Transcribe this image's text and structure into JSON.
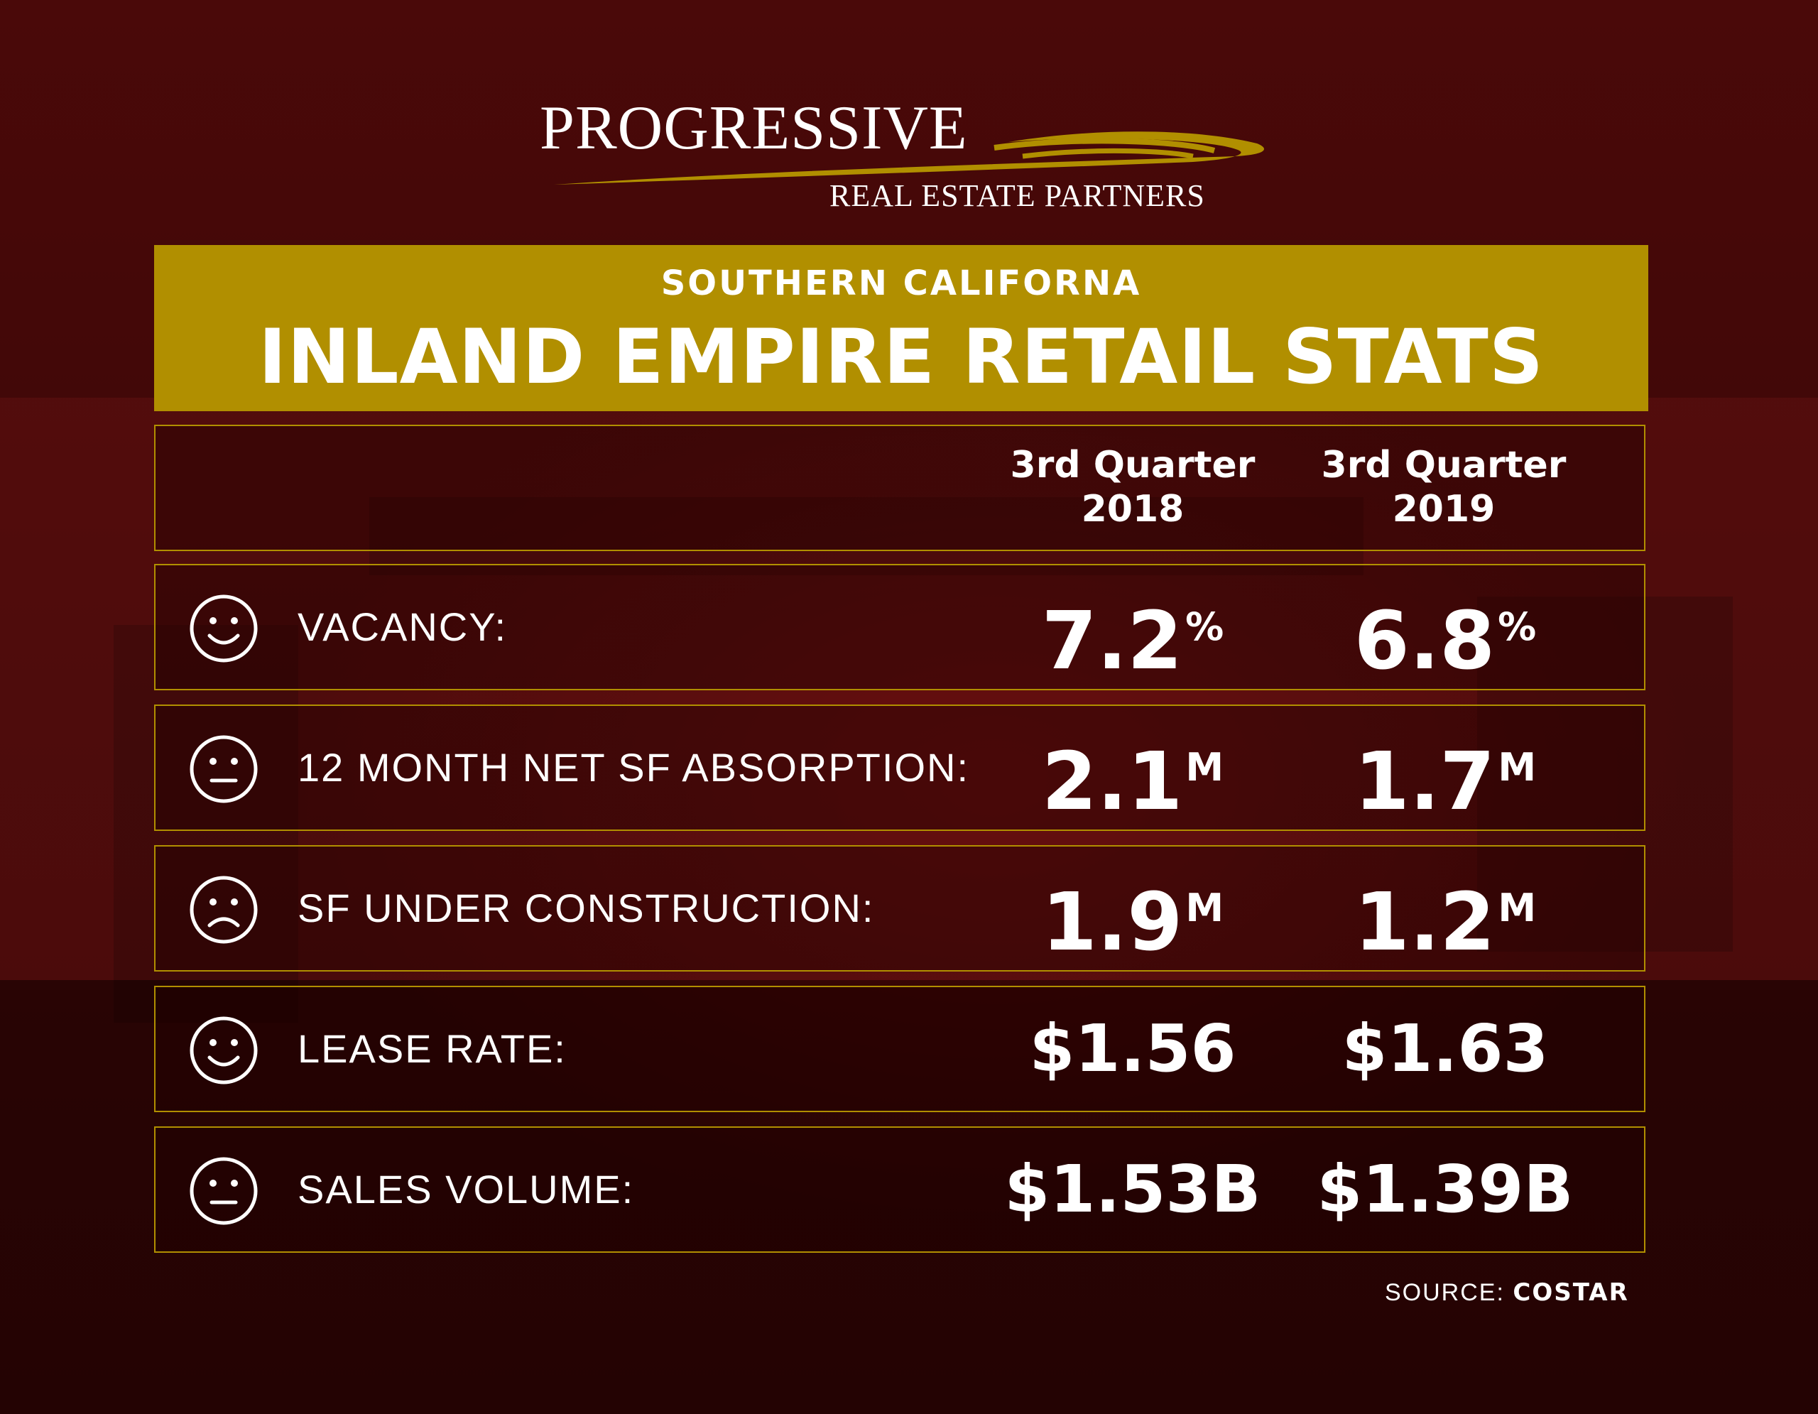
{
  "logo": {
    "main": "PROGRESSIVE",
    "sub": "REAL ESTATE PARTNERS",
    "swoosh_color": "#b18f00"
  },
  "banner": {
    "subtitle": "SOUTHERN CALIFORNA",
    "title": "INLAND EMPIRE RETAIL STATS",
    "color": "#b18f00"
  },
  "columns": [
    {
      "line1": "3rd Quarter",
      "line2": "2018"
    },
    {
      "line1": "3rd Quarter",
      "line2": "2019"
    }
  ],
  "rows": [
    {
      "face": "happy-face-icon",
      "label": "VACANCY:",
      "v1": "7.2",
      "s1": "%",
      "v2": "6.8",
      "s2": "%"
    },
    {
      "face": "neutral-face-icon",
      "label": "12 MONTH NET SF ABSORPTION:",
      "v1": "2.1",
      "s1": "M",
      "v2": "1.7",
      "s2": "M"
    },
    {
      "face": "sad-face-icon",
      "label": "SF UNDER CONSTRUCTION:",
      "v1": "1.9",
      "s1": "M",
      "v2": "1.2",
      "s2": "M"
    },
    {
      "face": "happy-face-icon",
      "label": "LEASE RATE:",
      "v1": "$1.56",
      "s1": "",
      "v2": "$1.63",
      "s2": ""
    },
    {
      "face": "neutral-face-icon",
      "label": "SALES VOLUME:",
      "v1": "$1.53B",
      "s1": "",
      "v2": "$1.39B",
      "s2": ""
    }
  ],
  "source": {
    "label": "SOURCE:",
    "name": "COSTAR"
  }
}
